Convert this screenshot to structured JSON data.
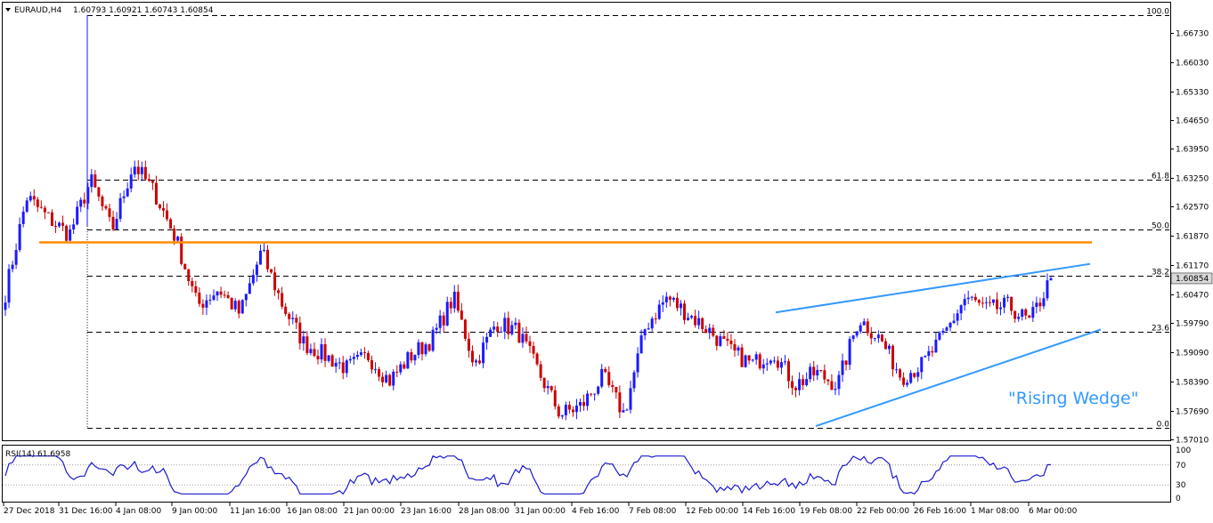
{
  "header": {
    "symbol": "EURAUD,H4",
    "ohlc": "1.60793 1.60921 1.60743 1.60854"
  },
  "price_axis": {
    "ticks": [
      "1.66730",
      "1.66030",
      "1.65330",
      "1.64650",
      "1.63950",
      "1.63250",
      "1.62570",
      "1.61870",
      "1.61170",
      "1.60470",
      "1.59790",
      "1.59090",
      "1.58390",
      "1.57690",
      "1.57010"
    ],
    "current_price": "1.60854"
  },
  "fib_levels": [
    {
      "label": "100.0",
      "price": 1.6715
    },
    {
      "label": "61.8",
      "price": 1.6322
    },
    {
      "label": "50.0",
      "price": 1.6202
    },
    {
      "label": "38.2",
      "price": 1.6091
    },
    {
      "label": "23.6",
      "price": 1.5957
    },
    {
      "label": "0.0",
      "price": 1.5728
    }
  ],
  "annotation": "\"Rising Wedge\"",
  "rsi_panel": {
    "label": "RSI(14) 61.6958",
    "ticks": [
      "100",
      "70",
      "30",
      "0"
    ]
  },
  "time_axis": {
    "ticks": [
      "27 Dec 2018",
      "31 Dec 16:00",
      "4 Jan 08:00",
      "9 Jan 00:00",
      "11 Jan 16:00",
      "16 Jan 08:00",
      "21 Jan 00:00",
      "23 Jan 16:00",
      "28 Jan 08:00",
      "31 Jan 00:00",
      "4 Feb 16:00",
      "7 Feb 08:00",
      "12 Feb 00:00",
      "14 Feb 16:00",
      "19 Feb 08:00",
      "22 Feb 00:00",
      "26 Feb 16:00",
      "1 Mar 08:00",
      "6 Mar 00:00"
    ]
  },
  "colors": {
    "bull": "#1a1aff",
    "bear": "#cc0000",
    "resistance": "#ff8c00",
    "trendline": "#3399ff",
    "rsi": "#1a1acc",
    "current_price_bg": "#d9d9d9"
  },
  "chart_data": {
    "type": "candlestick",
    "title": "EURAUD,H4",
    "ylim": [
      1.5698,
      1.6745
    ],
    "horizontal_resistance": 1.6172,
    "rising_wedge": {
      "upper_line": [
        [
          "14 Feb 16:00",
          1.6004
        ],
        [
          "6 Mar 08:00",
          1.612
        ]
      ],
      "lower_line": [
        [
          "18 Feb 08:00",
          1.5732
        ],
        [
          "6 Mar 08:00",
          1.5963
        ]
      ]
    },
    "close_path": [
      [
        "27 Dec 2018",
        1.605
      ],
      [
        "28 Dec",
        1.628
      ],
      [
        "29 Dec",
        1.623
      ],
      [
        "30 Dec",
        1.619
      ],
      [
        "31 Dec",
        1.632
      ],
      [
        "31 Dec 16:00",
        1.62
      ],
      [
        "1 Jan",
        1.636
      ],
      [
        "2 Jan",
        1.629
      ],
      [
        "3 Jan",
        1.618
      ],
      [
        "4 Jan 08:00",
        1.602
      ],
      [
        "6 Jan",
        1.606
      ],
      [
        "8 Jan",
        1.6
      ],
      [
        "9 Jan 00:00",
        1.615
      ],
      [
        "10 Jan",
        1.602
      ],
      [
        "11 Jan 16:00",
        1.593
      ],
      [
        "13 Jan",
        1.59
      ],
      [
        "14 Jan",
        1.587
      ],
      [
        "16 Jan 08:00",
        1.59
      ],
      [
        "18 Jan",
        1.584
      ],
      [
        "21 Jan 00:00",
        1.59
      ],
      [
        "22 Jan",
        1.594
      ],
      [
        "23 Jan 16:00",
        1.604
      ],
      [
        "25 Jan",
        1.588
      ],
      [
        "28 Jan 08:00",
        1.598
      ],
      [
        "29 Jan",
        1.596
      ],
      [
        "30 Jan",
        1.586
      ],
      [
        "31 Jan 00:00",
        1.576
      ],
      [
        "1 Feb",
        1.578
      ],
      [
        "3 Feb",
        1.585
      ],
      [
        "4 Feb 16:00",
        1.576
      ],
      [
        "5 Feb",
        1.597
      ],
      [
        "7 Feb 08:00",
        1.604
      ],
      [
        "8 Feb",
        1.6
      ],
      [
        "11 Feb",
        1.596
      ],
      [
        "12 Feb 00:00",
        1.591
      ],
      [
        "13 Feb",
        1.588
      ],
      [
        "14 Feb 16:00",
        1.591
      ],
      [
        "15 Feb",
        1.583
      ],
      [
        "18 Feb",
        1.586
      ],
      [
        "19 Feb 08:00",
        1.583
      ],
      [
        "20 Feb",
        1.599
      ],
      [
        "22 Feb 00:00",
        1.594
      ],
      [
        "23 Feb",
        1.585
      ],
      [
        "25 Feb",
        1.588
      ],
      [
        "26 Feb 16:00",
        1.595
      ],
      [
        "28 Feb",
        1.604
      ],
      [
        "1 Mar 08:00",
        1.601
      ],
      [
        "4 Mar",
        1.602
      ],
      [
        "5 Mar",
        1.598
      ],
      [
        "6 Mar 00:00",
        1.6085
      ]
    ],
    "rsi": {
      "period": 14,
      "last": 61.6958,
      "levels": [
        70,
        30
      ],
      "ylim": [
        0,
        100
      ]
    }
  }
}
